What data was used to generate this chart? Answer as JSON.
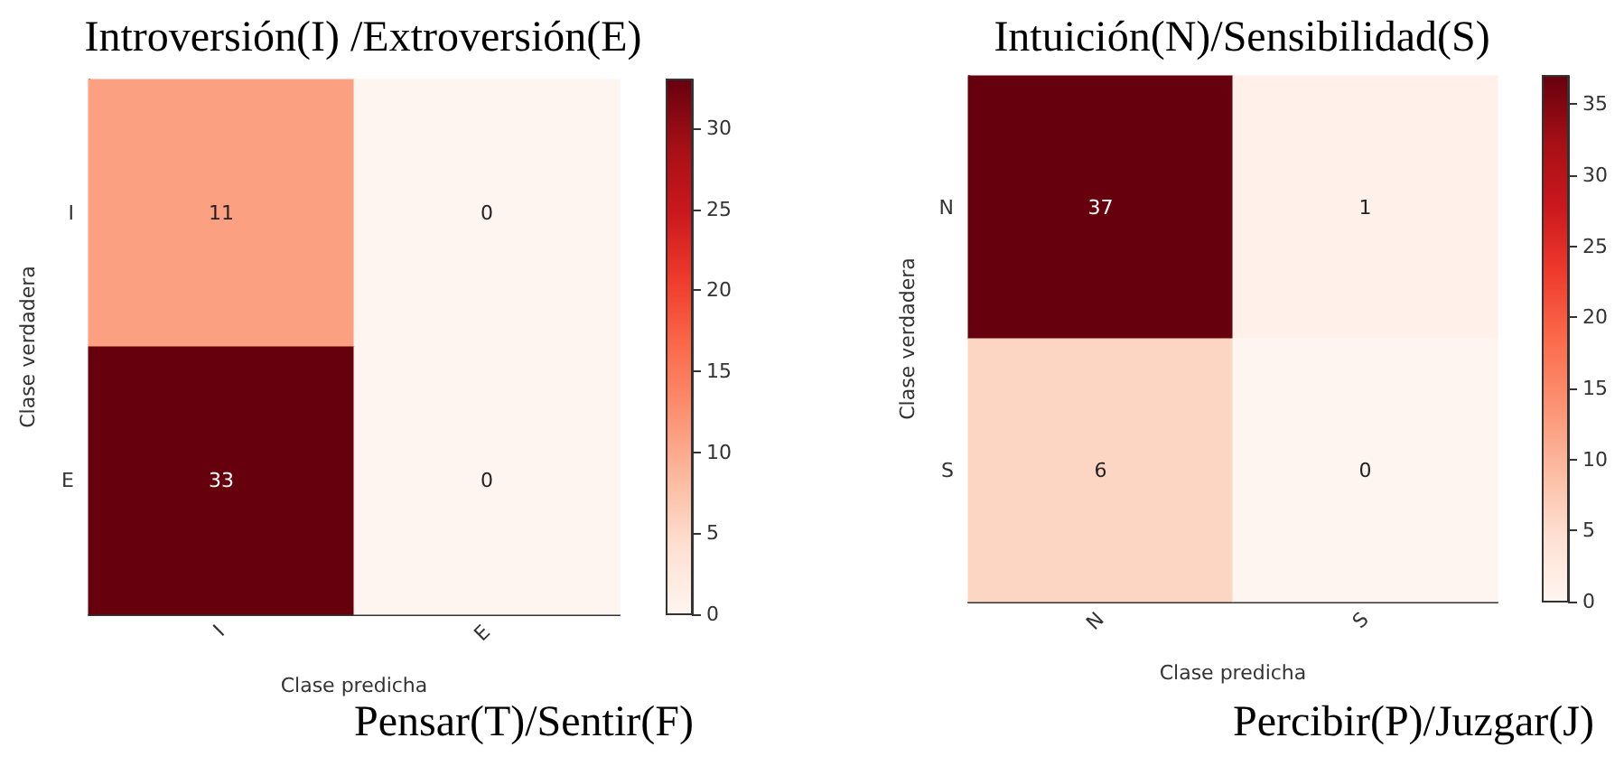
{
  "chart_data": [
    {
      "type": "heatmap",
      "title": "Introversión(I) /Extroversión(E)",
      "xlabel": "Clase predicha",
      "ylabel": "Clase verdadera",
      "categories": [
        "I",
        "E"
      ],
      "y_categories": [
        "I",
        "E"
      ],
      "cells": [
        [
          11,
          0
        ],
        [
          33,
          0
        ]
      ],
      "data_labels": true,
      "clim": [
        0,
        33
      ],
      "cticks": [
        0,
        5,
        10,
        15,
        20,
        25,
        30
      ],
      "annotations": [
        "Pensar(T)/Sentir(F)"
      ]
    },
    {
      "type": "heatmap",
      "title": "Intuición(N)/Sensibilidad(S)",
      "xlabel": "Clase predicha",
      "ylabel": "Clase verdadera",
      "categories": [
        "N",
        "S"
      ],
      "y_categories": [
        "N",
        "S"
      ],
      "cells": [
        [
          37,
          1
        ],
        [
          6,
          0
        ]
      ],
      "data_labels": true,
      "clim": [
        0,
        37
      ],
      "cticks": [
        0,
        5,
        10,
        15,
        20,
        25,
        30,
        35
      ],
      "annotations": [
        "Percibir(P)/Juzgar(J)"
      ]
    }
  ]
}
